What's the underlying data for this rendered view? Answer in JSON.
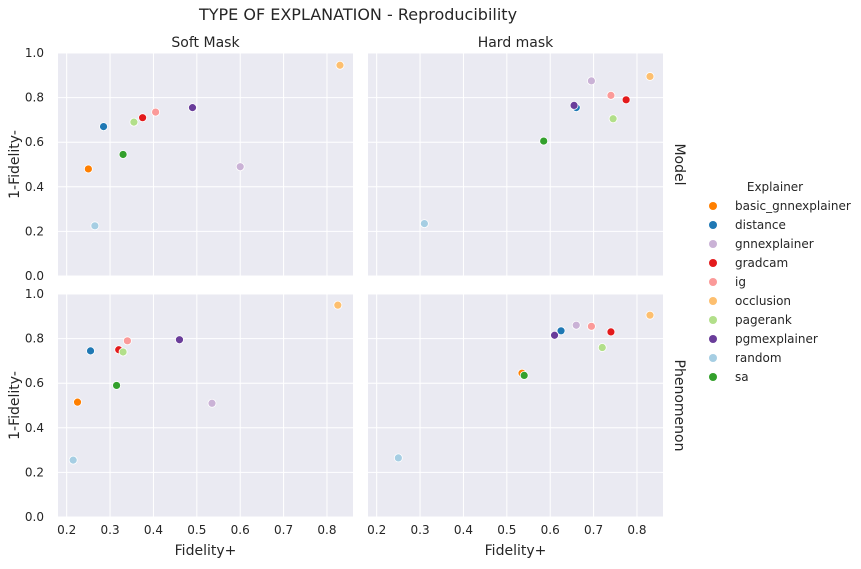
{
  "chart_data": {
    "type": "scatter",
    "title": "TYPE OF EXPLANATION - Reproducibility",
    "xlabel": "Fidelity+",
    "ylabel": "1-Fidelity-",
    "xlim": [
      0.18,
      0.86
    ],
    "ylim": [
      0.0,
      1.0
    ],
    "xticks": [
      "0.2",
      "0.3",
      "0.4",
      "0.5",
      "0.6",
      "0.7",
      "0.8"
    ],
    "yticks": [
      "0.0",
      "0.2",
      "0.4",
      "0.6",
      "0.8",
      "1.0"
    ],
    "grid": true,
    "col_labels": [
      "Soft Mask",
      "Hard mask"
    ],
    "row_labels": [
      "Model",
      "Phenomenon"
    ],
    "legend": {
      "title": "Explainer",
      "position": "right",
      "entries": [
        {
          "name": "basic_gnnexplainer",
          "color": "#ff7f00"
        },
        {
          "name": "distance",
          "color": "#1f78b4"
        },
        {
          "name": "gnnexplainer",
          "color": "#cab2d6"
        },
        {
          "name": "gradcam",
          "color": "#e31a1c"
        },
        {
          "name": "ig",
          "color": "#fb9a99"
        },
        {
          "name": "occlusion",
          "color": "#fdbf6f"
        },
        {
          "name": "pagerank",
          "color": "#b2df8a"
        },
        {
          "name": "pgmexplainer",
          "color": "#6a3d9a"
        },
        {
          "name": "random",
          "color": "#a6cee3"
        },
        {
          "name": "sa",
          "color": "#33a02c"
        }
      ]
    },
    "panels": [
      {
        "row": "Model",
        "col": "Soft Mask",
        "points": [
          {
            "explainer": "basic_gnnexplainer",
            "x": 0.25,
            "y": 0.48
          },
          {
            "explainer": "distance",
            "x": 0.285,
            "y": 0.67
          },
          {
            "explainer": "gnnexplainer",
            "x": 0.6,
            "y": 0.49
          },
          {
            "explainer": "gradcam",
            "x": 0.375,
            "y": 0.71
          },
          {
            "explainer": "ig",
            "x": 0.405,
            "y": 0.735
          },
          {
            "explainer": "occlusion",
            "x": 0.83,
            "y": 0.945
          },
          {
            "explainer": "pagerank",
            "x": 0.355,
            "y": 0.69
          },
          {
            "explainer": "pgmexplainer",
            "x": 0.49,
            "y": 0.755
          },
          {
            "explainer": "random",
            "x": 0.265,
            "y": 0.225
          },
          {
            "explainer": "sa",
            "x": 0.33,
            "y": 0.545
          }
        ]
      },
      {
        "row": "Model",
        "col": "Hard mask",
        "points": [
          {
            "explainer": "distance",
            "x": 0.66,
            "y": 0.755
          },
          {
            "explainer": "gnnexplainer",
            "x": 0.695,
            "y": 0.875
          },
          {
            "explainer": "gradcam",
            "x": 0.775,
            "y": 0.79
          },
          {
            "explainer": "ig",
            "x": 0.74,
            "y": 0.81
          },
          {
            "explainer": "occlusion",
            "x": 0.83,
            "y": 0.895
          },
          {
            "explainer": "pagerank",
            "x": 0.745,
            "y": 0.705
          },
          {
            "explainer": "pgmexplainer",
            "x": 0.655,
            "y": 0.765
          },
          {
            "explainer": "random",
            "x": 0.31,
            "y": 0.235
          },
          {
            "explainer": "sa",
            "x": 0.585,
            "y": 0.605
          }
        ]
      },
      {
        "row": "Phenomenon",
        "col": "Soft Mask",
        "points": [
          {
            "explainer": "basic_gnnexplainer",
            "x": 0.225,
            "y": 0.515
          },
          {
            "explainer": "distance",
            "x": 0.255,
            "y": 0.745
          },
          {
            "explainer": "gnnexplainer",
            "x": 0.535,
            "y": 0.51
          },
          {
            "explainer": "gradcam",
            "x": 0.32,
            "y": 0.75
          },
          {
            "explainer": "ig",
            "x": 0.34,
            "y": 0.79
          },
          {
            "explainer": "occlusion",
            "x": 0.825,
            "y": 0.95
          },
          {
            "explainer": "pagerank",
            "x": 0.33,
            "y": 0.74
          },
          {
            "explainer": "pgmexplainer",
            "x": 0.46,
            "y": 0.795
          },
          {
            "explainer": "random",
            "x": 0.215,
            "y": 0.255
          },
          {
            "explainer": "sa",
            "x": 0.315,
            "y": 0.59
          }
        ]
      },
      {
        "row": "Phenomenon",
        "col": "Hard mask",
        "points": [
          {
            "explainer": "basic_gnnexplainer",
            "x": 0.535,
            "y": 0.645
          },
          {
            "explainer": "distance",
            "x": 0.625,
            "y": 0.835
          },
          {
            "explainer": "gnnexplainer",
            "x": 0.66,
            "y": 0.86
          },
          {
            "explainer": "gradcam",
            "x": 0.74,
            "y": 0.83
          },
          {
            "explainer": "ig",
            "x": 0.695,
            "y": 0.855
          },
          {
            "explainer": "occlusion",
            "x": 0.83,
            "y": 0.905
          },
          {
            "explainer": "pagerank",
            "x": 0.72,
            "y": 0.76
          },
          {
            "explainer": "pgmexplainer",
            "x": 0.61,
            "y": 0.815
          },
          {
            "explainer": "random",
            "x": 0.25,
            "y": 0.265
          },
          {
            "explainer": "sa",
            "x": 0.54,
            "y": 0.635
          }
        ]
      }
    ]
  }
}
